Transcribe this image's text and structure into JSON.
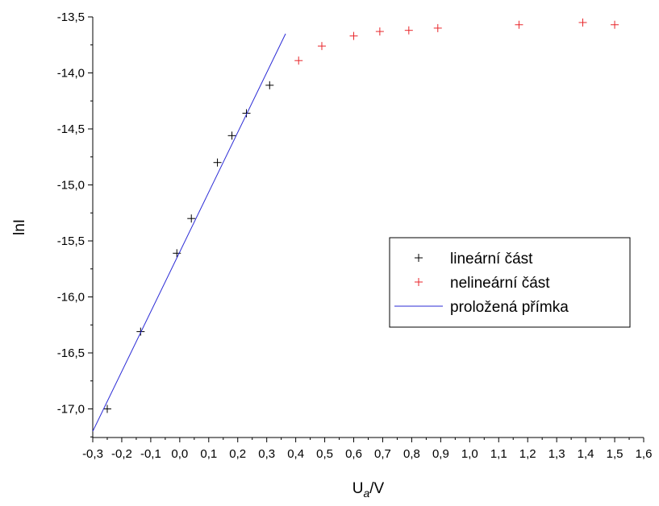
{
  "chart_data": {
    "type": "scatter",
    "title": "",
    "xlabel": "U",
    "xlabel_sub": "a",
    "xlabel_unit": "/V",
    "ylabel": "lnI",
    "xlim": [
      -0.3,
      1.6
    ],
    "ylim": [
      -17.25,
      -13.5
    ],
    "x_ticks": [
      "-0,3",
      "-0,2",
      "-0,1",
      "0,0",
      "0,1",
      "0,2",
      "0,3",
      "0,4",
      "0,5",
      "0,6",
      "0,7",
      "0,8",
      "0,9",
      "1,0",
      "1,1",
      "1,2",
      "1,3",
      "1,4",
      "1,5",
      "1,6"
    ],
    "y_ticks": [
      "-13,5",
      "-14,0",
      "-14,5",
      "-15,0",
      "-15,5",
      "-16,0",
      "-16,5",
      "-17,0"
    ],
    "grid": false,
    "legend_position": "center-right",
    "series": [
      {
        "name": "lineární část",
        "marker": "plus",
        "color": "#000000",
        "points": [
          [
            -0.25,
            -17.0
          ],
          [
            -0.135,
            -16.31
          ],
          [
            -0.01,
            -15.61
          ],
          [
            0.04,
            -15.3
          ],
          [
            0.13,
            -14.8
          ],
          [
            0.18,
            -14.56
          ],
          [
            0.23,
            -14.36
          ],
          [
            0.31,
            -14.11
          ]
        ]
      },
      {
        "name": "nelineární část",
        "marker": "plus",
        "color": "#e8262b",
        "points": [
          [
            0.41,
            -13.89
          ],
          [
            0.49,
            -13.76
          ],
          [
            0.6,
            -13.67
          ],
          [
            0.69,
            -13.63
          ],
          [
            0.79,
            -13.62
          ],
          [
            0.89,
            -13.6
          ],
          [
            1.17,
            -13.57
          ],
          [
            1.39,
            -13.55
          ],
          [
            1.5,
            -13.57
          ]
        ]
      },
      {
        "name": "proložená přímka",
        "marker": "line",
        "color": "#2b2bd6",
        "points": [
          [
            -0.3,
            -17.2
          ],
          [
            0.365,
            -13.65
          ]
        ]
      }
    ]
  }
}
